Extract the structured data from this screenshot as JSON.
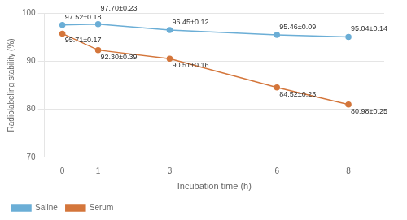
{
  "chart_data": {
    "type": "line",
    "x": [
      0,
      1,
      3,
      6,
      8
    ],
    "series": [
      {
        "name": "Saline",
        "color": "#6BAED6",
        "marker": "circle",
        "values": [
          97.52,
          97.7,
          96.45,
          95.46,
          95.04
        ],
        "value_labels": [
          "97.52±0.18",
          "97.70±0.23",
          "96.45±0.12",
          "95.46±0.09",
          "95.04±0.14"
        ]
      },
      {
        "name": "Serum",
        "color": "#D4763B",
        "marker": "circle",
        "values": [
          95.71,
          92.3,
          90.51,
          84.52,
          80.98
        ],
        "value_labels": [
          "95.71±0.17",
          "92.30±0.39",
          "90.51±0.16",
          "84.52±0.23",
          "80.98±0.25"
        ]
      }
    ],
    "xlabel": "Incubation time (h)",
    "ylabel": "Radiolabeling stability (%)",
    "xlim": [
      -0.5,
      9.0
    ],
    "xticks": [
      0,
      1,
      3,
      6,
      8
    ],
    "ylim": [
      70,
      100
    ],
    "yticks": [
      70,
      80,
      90,
      100
    ],
    "grid": "y",
    "legend": "lower left",
    "data_labels": true
  }
}
